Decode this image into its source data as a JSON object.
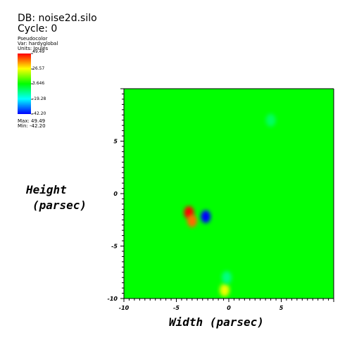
{
  "header": {
    "db_text": "DB: noise2d.silo",
    "cycle_text": "Cycle: 0"
  },
  "legend": {
    "plot_type": "Pseudocolor",
    "var_text": "Var: hardyglobal",
    "units_text": "Units: Joules",
    "tick_labels": [
      "49.49",
      "26.57",
      "3.646",
      "-19.28",
      "-42.20"
    ],
    "max_text": "Max: 49.49",
    "min_text": "Min: -42.20",
    "colors": [
      "#ff0000",
      "#ffff00",
      "#00ff00",
      "#00ffff",
      "#0000ff"
    ]
  },
  "chart_data": {
    "type": "heatmap",
    "xlabel": "Width (parsec)",
    "ylabel_line1": "Height",
    "ylabel_line2": "(parsec)",
    "xlim": [
      -10,
      10
    ],
    "ylim": [
      -10,
      10
    ],
    "x_ticks": [
      -10,
      -5,
      0,
      5
    ],
    "y_ticks": [
      -10,
      -5,
      0,
      5
    ],
    "x_tick_labels": [
      "-10",
      "-5",
      "0",
      "5"
    ],
    "y_tick_labels": [
      "-10",
      "-5",
      "0",
      "5"
    ],
    "value_range": [
      -42.2,
      49.49
    ],
    "background_value": 3.646,
    "features": [
      {
        "x": -3.8,
        "y": -1.8,
        "value": 49.49
      },
      {
        "x": -3.5,
        "y": -2.6,
        "value": 40
      },
      {
        "x": -2.2,
        "y": -2.2,
        "value": -42.2
      },
      {
        "x": -0.4,
        "y": -9.2,
        "value": 25
      },
      {
        "x": -0.2,
        "y": -8.0,
        "value": -8
      },
      {
        "x": 4.0,
        "y": 7.0,
        "value": -5
      }
    ]
  }
}
